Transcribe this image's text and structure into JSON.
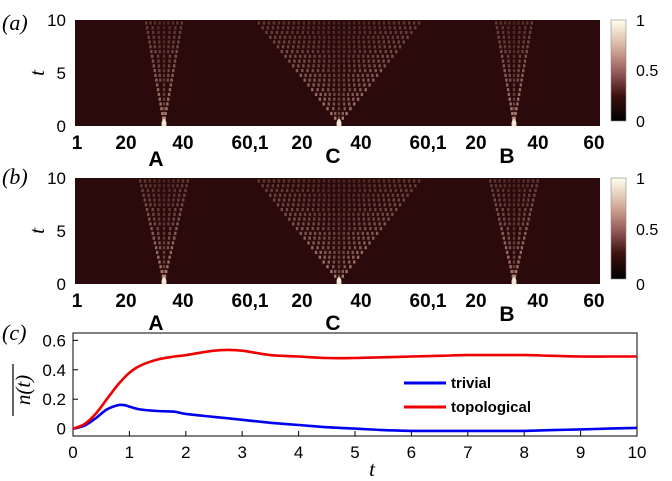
{
  "chart_data": [
    {
      "type": "heatmap",
      "panel_label": "(a)",
      "ylabel": "t",
      "ylim": [
        0,
        10
      ],
      "yticks": [
        "0",
        "5",
        "10"
      ],
      "xticks": [
        "1",
        "20",
        "40",
        "60,1",
        "20",
        "40",
        "60,1",
        "20",
        "40",
        "60"
      ],
      "segment_labels": [
        "A",
        "C",
        "B"
      ],
      "colorbar": {
        "ticks": [
          "0",
          "0.5",
          "1"
        ],
        "range": [
          0,
          1
        ]
      },
      "cones": [
        {
          "segment": "A",
          "center_site": 31,
          "half_width_at_top": 6
        },
        {
          "segment": "C",
          "center_site": 31,
          "half_width_at_top": 27
        },
        {
          "segment": "B",
          "center_site": 31,
          "half_width_at_top": 6
        }
      ]
    },
    {
      "type": "heatmap",
      "panel_label": "(b)",
      "ylabel": "t",
      "ylim": [
        0,
        10
      ],
      "yticks": [
        "0",
        "5",
        "10"
      ],
      "xticks": [
        "1",
        "20",
        "40",
        "60,1",
        "20",
        "40",
        "60,1",
        "20",
        "40",
        "60"
      ],
      "segment_labels": [
        "A",
        "C",
        "B"
      ],
      "colorbar": {
        "ticks": [
          "0",
          "0.5",
          "1"
        ],
        "range": [
          0,
          1
        ]
      },
      "cones": [
        {
          "segment": "A",
          "center_site": 31,
          "half_width_at_top": 8
        },
        {
          "segment": "C",
          "center_site": 31,
          "half_width_at_top": 27
        },
        {
          "segment": "B",
          "center_site": 31,
          "half_width_at_top": 8
        }
      ]
    },
    {
      "type": "line",
      "panel_label": "(c)",
      "ylabel": "n(t)",
      "xlabel": "t",
      "xlim": [
        0,
        10
      ],
      "ylim": [
        -0.05,
        0.65
      ],
      "xticks": [
        "0",
        "1",
        "2",
        "3",
        "4",
        "5",
        "6",
        "7",
        "8",
        "9",
        "10"
      ],
      "yticks": [
        "0",
        "0.2",
        "0.4",
        "0.6"
      ],
      "legend_position": "center-right",
      "series": [
        {
          "name": "trivial",
          "color": "#0000ee",
          "x": [
            0,
            0.2,
            0.4,
            0.6,
            0.8,
            0.9,
            1.0,
            1.2,
            1.5,
            1.8,
            2.0,
            2.5,
            3.0,
            3.5,
            4.0,
            4.5,
            5.0,
            5.5,
            6.0,
            6.5,
            7.0,
            7.5,
            8.0,
            8.5,
            9.0,
            9.5,
            10.0
          ],
          "y": [
            0.0,
            0.02,
            0.07,
            0.13,
            0.16,
            0.16,
            0.15,
            0.13,
            0.12,
            0.115,
            0.1,
            0.08,
            0.06,
            0.04,
            0.025,
            0.01,
            0.0,
            -0.01,
            -0.015,
            -0.015,
            -0.015,
            -0.015,
            -0.015,
            -0.01,
            -0.005,
            0.0,
            0.005
          ]
        },
        {
          "name": "topological",
          "color": "#ee0000",
          "x": [
            0,
            0.2,
            0.4,
            0.6,
            0.8,
            1.0,
            1.2,
            1.5,
            1.8,
            2.0,
            2.5,
            2.75,
            3.0,
            3.5,
            4.0,
            4.5,
            5.0,
            5.5,
            6.0,
            6.5,
            7.0,
            7.5,
            8.0,
            8.5,
            9.0,
            9.5,
            10.0
          ],
          "y": [
            0.0,
            0.03,
            0.1,
            0.2,
            0.3,
            0.38,
            0.43,
            0.47,
            0.49,
            0.5,
            0.53,
            0.535,
            0.53,
            0.5,
            0.49,
            0.48,
            0.48,
            0.485,
            0.49,
            0.495,
            0.5,
            0.5,
            0.5,
            0.495,
            0.49,
            0.49,
            0.49
          ]
        }
      ]
    }
  ]
}
